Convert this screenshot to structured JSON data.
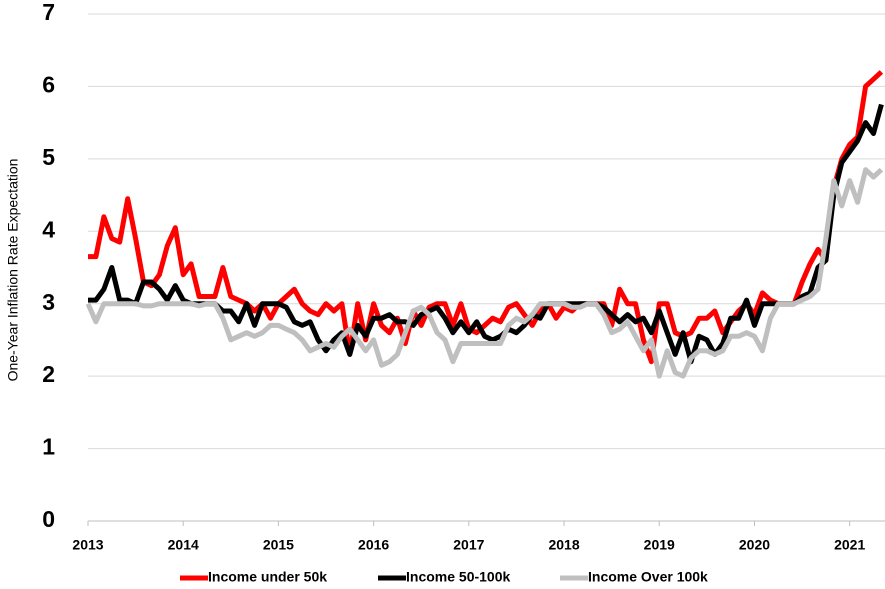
{
  "chart_data": {
    "type": "line",
    "ylabel": "One-Year Inflation Rate Expectation",
    "x": [
      2013,
      2013.083,
      2013.167,
      2013.25,
      2013.333,
      2013.417,
      2013.5,
      2013.583,
      2013.667,
      2013.75,
      2013.833,
      2013.917,
      2014,
      2014.083,
      2014.167,
      2014.25,
      2014.333,
      2014.417,
      2014.5,
      2014.583,
      2014.667,
      2014.75,
      2014.833,
      2014.917,
      2015,
      2015.083,
      2015.167,
      2015.25,
      2015.333,
      2015.417,
      2015.5,
      2015.583,
      2015.667,
      2015.75,
      2015.833,
      2015.917,
      2016,
      2016.083,
      2016.167,
      2016.25,
      2016.333,
      2016.417,
      2016.5,
      2016.583,
      2016.667,
      2016.75,
      2016.833,
      2016.917,
      2017,
      2017.083,
      2017.167,
      2017.25,
      2017.333,
      2017.417,
      2017.5,
      2017.583,
      2017.667,
      2017.75,
      2017.833,
      2017.917,
      2018,
      2018.083,
      2018.167,
      2018.25,
      2018.333,
      2018.417,
      2018.5,
      2018.583,
      2018.667,
      2018.75,
      2018.833,
      2018.917,
      2019,
      2019.083,
      2019.167,
      2019.25,
      2019.333,
      2019.417,
      2019.5,
      2019.583,
      2019.667,
      2019.75,
      2019.833,
      2019.917,
      2020,
      2020.083,
      2020.167,
      2020.25,
      2020.333,
      2020.417,
      2020.5,
      2020.583,
      2020.667,
      2020.75,
      2020.833,
      2020.917,
      2021,
      2021.083,
      2021.167,
      2021.25,
      2021.333
    ],
    "series": [
      {
        "name": "Income under 50k",
        "color": "#ff0000",
        "values": [
          3.65,
          3.65,
          4.2,
          3.9,
          3.85,
          4.45,
          3.9,
          3.3,
          3.25,
          3.4,
          3.8,
          4.05,
          3.4,
          3.55,
          3.1,
          3.1,
          3.1,
          3.5,
          3.1,
          3.05,
          3.0,
          2.9,
          3.0,
          2.8,
          3.0,
          3.1,
          3.2,
          3.0,
          2.9,
          2.85,
          3.0,
          2.9,
          3.0,
          2.3,
          3.0,
          2.5,
          3.0,
          2.7,
          2.6,
          2.8,
          2.45,
          2.9,
          2.7,
          2.95,
          3.0,
          3.0,
          2.7,
          3.0,
          2.65,
          2.6,
          2.7,
          2.8,
          2.75,
          2.95,
          3.0,
          2.85,
          2.7,
          2.9,
          3.0,
          2.8,
          2.95,
          2.9,
          3.0,
          3.0,
          3.0,
          3.0,
          2.7,
          3.2,
          3.0,
          3.0,
          2.5,
          2.2,
          3.0,
          3.0,
          2.6,
          2.55,
          2.6,
          2.8,
          2.8,
          2.9,
          2.6,
          2.75,
          2.9,
          3.0,
          2.85,
          3.15,
          3.05,
          3.0,
          3.0,
          3.0,
          3.3,
          3.55,
          3.75,
          3.6,
          4.6,
          5.0,
          5.2,
          5.3,
          6.0,
          6.1,
          6.2
        ]
      },
      {
        "name": "Income 50-100k",
        "color": "#000000",
        "values": [
          3.05,
          3.05,
          3.2,
          3.5,
          3.05,
          3.05,
          3.0,
          3.3,
          3.3,
          3.2,
          3.05,
          3.25,
          3.05,
          3.0,
          3.0,
          3.0,
          3.0,
          2.9,
          2.9,
          2.75,
          3.0,
          2.7,
          3.0,
          3.0,
          3.0,
          2.95,
          2.75,
          2.7,
          2.75,
          2.5,
          2.35,
          2.5,
          2.6,
          2.3,
          2.7,
          2.55,
          2.8,
          2.8,
          2.85,
          2.75,
          2.75,
          2.7,
          2.85,
          2.9,
          2.95,
          2.8,
          2.6,
          2.75,
          2.6,
          2.75,
          2.55,
          2.5,
          2.55,
          2.65,
          2.6,
          2.7,
          2.85,
          2.8,
          3.0,
          3.0,
          3.0,
          3.0,
          3.0,
          3.0,
          3.0,
          2.95,
          2.85,
          2.75,
          2.85,
          2.75,
          2.8,
          2.6,
          2.9,
          2.6,
          2.3,
          2.6,
          2.2,
          2.55,
          2.5,
          2.3,
          2.45,
          2.8,
          2.8,
          3.05,
          2.7,
          3.0,
          3.0,
          3.0,
          3.0,
          3.0,
          3.1,
          3.15,
          3.5,
          3.6,
          4.5,
          4.95,
          5.1,
          5.25,
          5.5,
          5.35,
          5.75
        ]
      },
      {
        "name": "Income Over 100k",
        "color": "#bfbfbf",
        "values": [
          3.0,
          2.75,
          3.0,
          3.0,
          3.0,
          3.0,
          3.0,
          2.97,
          2.97,
          3.0,
          3.0,
          3.0,
          3.0,
          3.0,
          2.97,
          3.0,
          3.0,
          2.8,
          2.5,
          2.55,
          2.6,
          2.55,
          2.6,
          2.7,
          2.7,
          2.65,
          2.6,
          2.5,
          2.35,
          2.4,
          2.45,
          2.4,
          2.55,
          2.65,
          2.5,
          2.35,
          2.5,
          2.15,
          2.2,
          2.3,
          2.6,
          2.9,
          2.95,
          2.85,
          2.6,
          2.5,
          2.2,
          2.45,
          2.45,
          2.45,
          2.45,
          2.45,
          2.45,
          2.7,
          2.8,
          2.75,
          2.85,
          3.0,
          3.0,
          3.0,
          3.0,
          2.95,
          2.95,
          3.0,
          3.0,
          2.85,
          2.6,
          2.65,
          2.75,
          2.55,
          2.35,
          2.5,
          2.0,
          2.35,
          2.05,
          2.0,
          2.25,
          2.35,
          2.35,
          2.3,
          2.35,
          2.55,
          2.55,
          2.6,
          2.55,
          2.35,
          2.8,
          3.0,
          3.0,
          3.0,
          3.05,
          3.1,
          3.2,
          3.9,
          4.7,
          4.35,
          4.7,
          4.4,
          4.85,
          4.75,
          4.85
        ]
      }
    ],
    "xlim": [
      2013,
      2021.35
    ],
    "xticks": [
      2013,
      2014,
      2015,
      2016,
      2017,
      2018,
      2019,
      2020,
      2021
    ],
    "ylim": [
      0,
      7
    ],
    "yticks": [
      0,
      1,
      2,
      3,
      4,
      5,
      6,
      7
    ],
    "grid": true,
    "legend": "bottom"
  }
}
